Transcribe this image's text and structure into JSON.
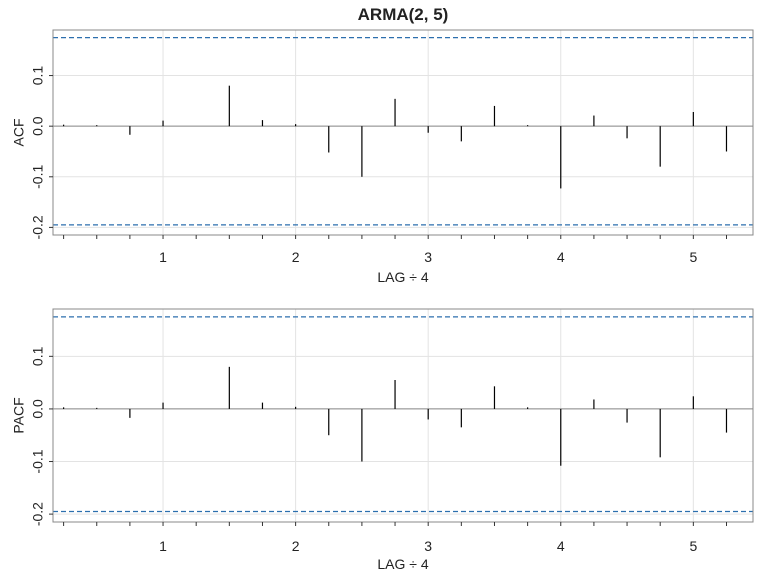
{
  "chart_data": [
    {
      "type": "bar",
      "panel": "acf",
      "title": "ARMA(2, 5)",
      "xlabel": "LAG ÷ 4",
      "ylabel": "ACF",
      "xlim": [
        0.17,
        5.45
      ],
      "ylim": [
        -0.215,
        0.19
      ],
      "xticks": [
        1,
        2,
        3,
        4,
        5
      ],
      "yticks": [
        -0.2,
        -0.1,
        0.0,
        0.1
      ],
      "ytick_labels": [
        "-0.2",
        "-0.1",
        "0.0",
        "0.1"
      ],
      "grid": true,
      "bounds": [
        0.175,
        -0.195
      ],
      "x": [
        0.25,
        0.5,
        0.75,
        1.0,
        1.25,
        1.5,
        1.75,
        2.0,
        2.25,
        2.5,
        2.75,
        3.0,
        3.25,
        3.5,
        3.75,
        4.0,
        4.25,
        4.5,
        4.75,
        5.0,
        5.25
      ],
      "values": [
        0.003,
        0.002,
        -0.017,
        0.011,
        0.0,
        0.08,
        0.012,
        0.004,
        -0.052,
        -0.1,
        0.054,
        -0.013,
        -0.03,
        0.04,
        0.002,
        -0.123,
        0.021,
        -0.024,
        -0.08,
        0.028,
        -0.05
      ]
    },
    {
      "type": "bar",
      "panel": "pacf",
      "title": "",
      "xlabel": "LAG ÷ 4",
      "ylabel": "PACF",
      "xlim": [
        0.17,
        5.45
      ],
      "ylim": [
        -0.215,
        0.19
      ],
      "xticks": [
        1,
        2,
        3,
        4,
        5
      ],
      "yticks": [
        -0.2,
        -0.1,
        0.0,
        0.1
      ],
      "ytick_labels": [
        "-0.2",
        "-0.1",
        "0.0",
        "0.1"
      ],
      "grid": true,
      "bounds": [
        0.175,
        -0.195
      ],
      "x": [
        0.25,
        0.5,
        0.75,
        1.0,
        1.25,
        1.5,
        1.75,
        2.0,
        2.25,
        2.5,
        2.75,
        3.0,
        3.25,
        3.5,
        3.75,
        4.0,
        4.25,
        4.5,
        4.75,
        5.0,
        5.25
      ],
      "values": [
        0.003,
        0.002,
        -0.017,
        0.012,
        0.0,
        0.08,
        0.012,
        0.004,
        -0.05,
        -0.1,
        0.055,
        -0.02,
        -0.035,
        0.043,
        0.003,
        -0.108,
        0.018,
        -0.026,
        -0.092,
        0.024,
        -0.045
      ]
    }
  ],
  "colors": {
    "bounds_line": "#2c6fae",
    "spike": "#000000",
    "grid": "#e3e3e3",
    "frame": "#888888",
    "zero_line": "#888888"
  }
}
